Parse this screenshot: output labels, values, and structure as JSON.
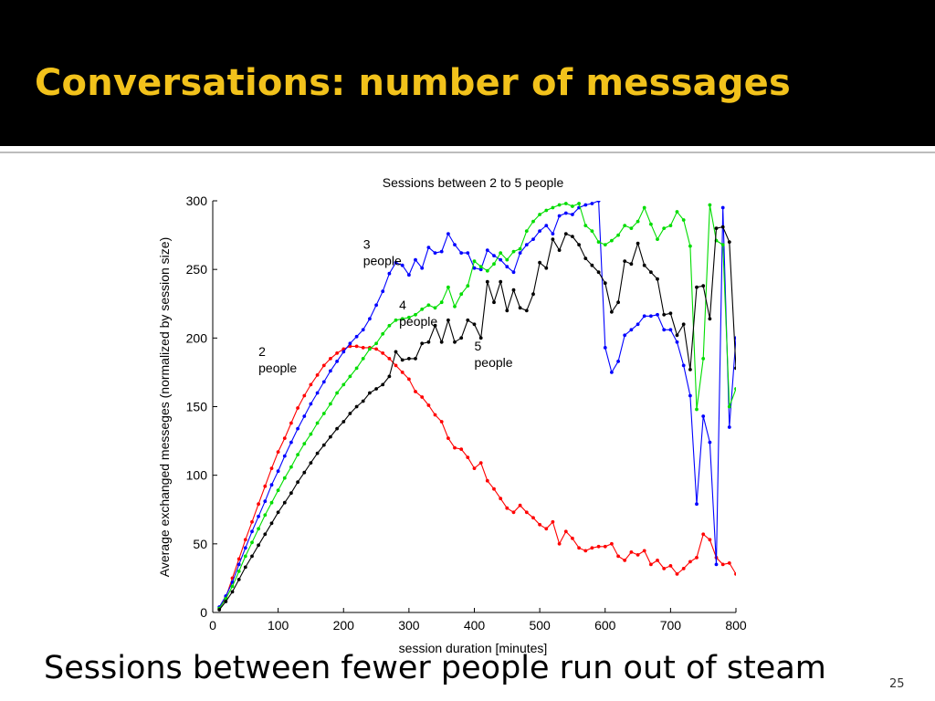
{
  "slide": {
    "title": "Conversations: number of messages",
    "caption": "Sessions between fewer people run out of steam",
    "page_number": "25",
    "title_color": "#f2c21b",
    "title_bar_color": "#000000"
  },
  "chart_data": {
    "type": "line",
    "title": "Sessions between 2 to 5 people",
    "xlabel": "session duration [minutes]",
    "ylabel": "Average exchanged messeges (normalized by session size)",
    "xlim": [
      0,
      800
    ],
    "ylim": [
      0,
      300
    ],
    "xticks": [
      0,
      100,
      200,
      300,
      400,
      500,
      600,
      700,
      800
    ],
    "yticks": [
      0,
      50,
      100,
      150,
      200,
      250,
      300
    ],
    "grid": false,
    "legend": "none",
    "annotations": [
      {
        "line1": "2",
        "line2": "people",
        "series": "2 people",
        "x": 70,
        "y": 187
      },
      {
        "line1": "3",
        "line2": "people",
        "series": "3 people",
        "x": 230,
        "y": 265
      },
      {
        "line1": "4",
        "line2": "people",
        "series": "4 people",
        "x": 285,
        "y": 221
      },
      {
        "line1": "5",
        "line2": "people",
        "series": "5 people",
        "x": 400,
        "y": 191
      }
    ],
    "series": [
      {
        "name": "2 people",
        "color": "#ff0000",
        "x": [
          10,
          20,
          30,
          40,
          50,
          60,
          70,
          80,
          90,
          100,
          110,
          120,
          130,
          140,
          150,
          160,
          170,
          180,
          190,
          200,
          210,
          220,
          230,
          240,
          250,
          260,
          270,
          280,
          290,
          300,
          310,
          320,
          330,
          340,
          350,
          360,
          370,
          380,
          390,
          400,
          410,
          420,
          430,
          440,
          450,
          460,
          470,
          480,
          490,
          500,
          510,
          520,
          530,
          540,
          550,
          560,
          570,
          580,
          590,
          600,
          610,
          620,
          630,
          640,
          650,
          660,
          670,
          680,
          690,
          700,
          710,
          720,
          730,
          740,
          750,
          760,
          770,
          780,
          790,
          800
        ],
        "y": [
          3,
          11,
          25,
          39,
          53,
          66,
          79,
          92,
          105,
          117,
          127,
          138,
          149,
          158,
          166,
          173,
          180,
          185,
          189,
          192,
          194,
          194,
          193,
          193,
          192,
          189,
          185,
          180,
          175,
          170,
          161,
          157,
          151,
          144,
          139,
          127,
          120,
          119,
          113,
          105,
          109,
          96,
          90,
          83,
          76,
          73,
          78,
          73,
          69,
          64,
          61,
          66,
          50,
          59,
          54,
          47,
          45,
          47,
          48,
          48,
          50,
          41,
          38,
          44,
          42,
          45,
          35,
          38,
          32,
          34,
          28,
          32,
          37,
          40,
          57,
          53,
          40,
          35,
          36,
          28
        ]
      },
      {
        "name": "3 people",
        "color": "#0000ff",
        "x": [
          10,
          20,
          30,
          40,
          50,
          60,
          70,
          80,
          90,
          100,
          110,
          120,
          130,
          140,
          150,
          160,
          170,
          180,
          190,
          200,
          210,
          220,
          230,
          240,
          250,
          260,
          270,
          280,
          290,
          300,
          310,
          320,
          330,
          340,
          350,
          360,
          370,
          380,
          390,
          400,
          410,
          420,
          430,
          440,
          450,
          460,
          470,
          480,
          490,
          500,
          510,
          520,
          530,
          540,
          550,
          560,
          570,
          580,
          590,
          600,
          610,
          620,
          630,
          640,
          650,
          660,
          670,
          680,
          690,
          700,
          710,
          720,
          730,
          740,
          750,
          760,
          770,
          780,
          790,
          800
        ],
        "y": [
          4,
          12,
          22,
          35,
          47,
          59,
          70,
          81,
          93,
          103,
          114,
          124,
          134,
          143,
          152,
          160,
          168,
          176,
          183,
          190,
          196,
          201,
          206,
          214,
          224,
          234,
          247,
          255,
          253,
          246,
          257,
          251,
          266,
          262,
          263,
          276,
          268,
          262,
          262,
          251,
          250,
          264,
          260,
          257,
          252,
          248,
          262,
          268,
          272,
          278,
          282,
          276,
          289,
          291,
          290,
          295,
          297,
          298,
          300,
          193,
          175,
          183,
          202,
          206,
          210,
          216,
          216,
          217,
          206,
          206,
          197,
          180,
          158,
          79,
          143,
          124,
          35,
          295,
          135,
          200
        ]
      },
      {
        "name": "4 people",
        "color": "#00dd00",
        "x": [
          10,
          20,
          30,
          40,
          50,
          60,
          70,
          80,
          90,
          100,
          110,
          120,
          130,
          140,
          150,
          160,
          170,
          180,
          190,
          200,
          210,
          220,
          230,
          240,
          250,
          260,
          270,
          280,
          290,
          300,
          310,
          320,
          330,
          340,
          350,
          360,
          370,
          380,
          390,
          400,
          410,
          420,
          430,
          440,
          450,
          460,
          470,
          480,
          490,
          500,
          510,
          520,
          530,
          540,
          550,
          560,
          570,
          580,
          590,
          600,
          610,
          620,
          630,
          640,
          650,
          660,
          670,
          680,
          690,
          700,
          710,
          720,
          730,
          740,
          750,
          760,
          770,
          780,
          790,
          800
        ],
        "y": [
          3,
          10,
          19,
          30,
          41,
          51,
          61,
          71,
          80,
          89,
          98,
          106,
          115,
          123,
          130,
          138,
          145,
          152,
          160,
          166,
          172,
          178,
          185,
          192,
          196,
          203,
          209,
          213,
          214,
          215,
          217,
          221,
          224,
          222,
          226,
          237,
          223,
          232,
          238,
          256,
          252,
          249,
          254,
          262,
          257,
          263,
          265,
          278,
          285,
          290,
          293,
          295,
          297,
          298,
          296,
          298,
          282,
          278,
          270,
          268,
          271,
          275,
          282,
          280,
          285,
          295,
          283,
          272,
          280,
          282,
          292,
          286,
          267,
          148,
          185,
          297,
          271,
          268,
          150,
          163
        ]
      },
      {
        "name": "5 people",
        "color": "#000000",
        "x": [
          10,
          20,
          30,
          40,
          50,
          60,
          70,
          80,
          90,
          100,
          110,
          120,
          130,
          140,
          150,
          160,
          170,
          180,
          190,
          200,
          210,
          220,
          230,
          240,
          250,
          260,
          270,
          280,
          290,
          300,
          310,
          320,
          330,
          340,
          350,
          360,
          370,
          380,
          390,
          400,
          410,
          420,
          430,
          440,
          450,
          460,
          470,
          480,
          490,
          500,
          510,
          520,
          530,
          540,
          550,
          560,
          570,
          580,
          590,
          600,
          610,
          620,
          630,
          640,
          650,
          660,
          670,
          680,
          690,
          700,
          710,
          720,
          730,
          740,
          750,
          760,
          770,
          780,
          790,
          800
        ],
        "y": [
          2,
          8,
          15,
          24,
          33,
          41,
          49,
          57,
          65,
          73,
          80,
          87,
          95,
          102,
          109,
          116,
          122,
          128,
          134,
          139,
          145,
          150,
          154,
          160,
          163,
          166,
          172,
          190,
          184,
          185,
          185,
          196,
          197,
          209,
          197,
          213,
          197,
          200,
          213,
          210,
          200,
          241,
          226,
          241,
          220,
          235,
          222,
          220,
          232,
          255,
          251,
          272,
          264,
          276,
          274,
          268,
          258,
          253,
          248,
          240,
          219,
          226,
          256,
          254,
          269,
          253,
          248,
          243,
          217,
          218,
          202,
          210,
          177,
          237,
          238,
          214,
          280,
          281,
          270,
          178
        ]
      }
    ]
  }
}
